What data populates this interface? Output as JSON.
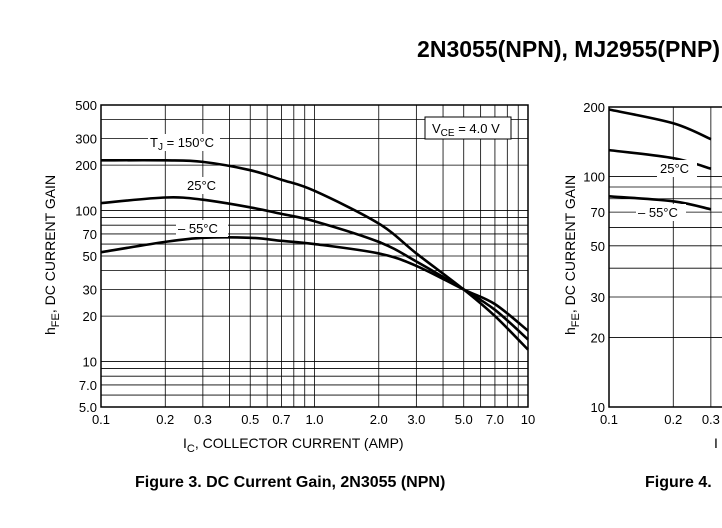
{
  "page_title": "2N3055(NPN), MJ2955(PNP)",
  "chart_data": [
    {
      "type": "line",
      "caption": "Figure 3. DC Current Gain, 2N3055 (NPN)",
      "xlabel": {
        "main": "I",
        "sub": "C",
        "rest": ", COLLECTOR CURRENT (AMP)"
      },
      "ylabel": {
        "main": "h",
        "sub": "FE",
        "rest": ", DC CURRENT GAIN"
      },
      "xscale": "log",
      "yscale": "log",
      "xlim": [
        0.1,
        10
      ],
      "ylim": [
        5,
        500
      ],
      "grid": true,
      "x_ticks": [
        "0.1",
        "0.2",
        "0.3",
        "0.5",
        "0.7",
        "1.0",
        "2.0",
        "3.0",
        "5.0",
        "7.0",
        "10"
      ],
      "y_ticks": [
        "500",
        "300",
        "200",
        "100",
        "70",
        "50",
        "30",
        "20",
        "10",
        "7.0",
        "5.0"
      ],
      "conditions": {
        "main": "V",
        "sub": "CE",
        "rest": " = 4.0 V"
      },
      "series": [
        {
          "label_main": "T",
          "label_sub": "J",
          "label_rest": " = 150°C",
          "x": [
            0.1,
            0.2,
            0.3,
            0.5,
            0.7,
            1.0,
            2.0,
            3.0,
            5.0,
            7.0,
            10
          ],
          "y": [
            215,
            215,
            210,
            185,
            160,
            135,
            82,
            52,
            30,
            20,
            12
          ]
        },
        {
          "label_main": "25°C",
          "label_sub": "",
          "label_rest": "",
          "x": [
            0.1,
            0.2,
            0.3,
            0.5,
            0.7,
            1.0,
            2.0,
            3.0,
            5.0,
            7.0,
            10
          ],
          "y": [
            112,
            122,
            118,
            105,
            95,
            85,
            62,
            46,
            30,
            22,
            14
          ]
        },
        {
          "label_main": "– 55°C",
          "label_sub": "",
          "label_rest": "",
          "x": [
            0.1,
            0.2,
            0.3,
            0.5,
            0.7,
            1.0,
            2.0,
            3.0,
            5.0,
            7.0,
            10
          ],
          "y": [
            53,
            62,
            66,
            66,
            63,
            60,
            52,
            43,
            30,
            24,
            16
          ]
        }
      ]
    },
    {
      "type": "line",
      "caption": "Figure 4.",
      "xlabel": {
        "main": "I",
        "sub": "",
        "rest": ""
      },
      "ylabel": {
        "main": "h",
        "sub": "FE",
        "rest": ", DC CURRENT GAIN"
      },
      "xscale": "log",
      "yscale": "log",
      "xlim": [
        0.1,
        10
      ],
      "ylim": [
        10,
        200
      ],
      "grid": true,
      "x_ticks": [
        "0.1",
        "0.2",
        "0.3"
      ],
      "y_ticks": [
        "200",
        "100",
        "70",
        "50",
        "30",
        "20",
        "10"
      ],
      "series": [
        {
          "label_main": "",
          "label_sub": "",
          "label_rest": "",
          "x": [
            0.1,
            0.2,
            0.3
          ],
          "y": [
            195,
            170,
            145
          ]
        },
        {
          "label_main": "25°C",
          "label_sub": "",
          "label_rest": "",
          "x": [
            0.1,
            0.2,
            0.3
          ],
          "y": [
            130,
            120,
            108
          ]
        },
        {
          "label_main": "– 55°C",
          "label_sub": "",
          "label_rest": "",
          "x": [
            0.1,
            0.2,
            0.3
          ],
          "y": [
            82,
            78,
            72
          ]
        }
      ]
    }
  ]
}
